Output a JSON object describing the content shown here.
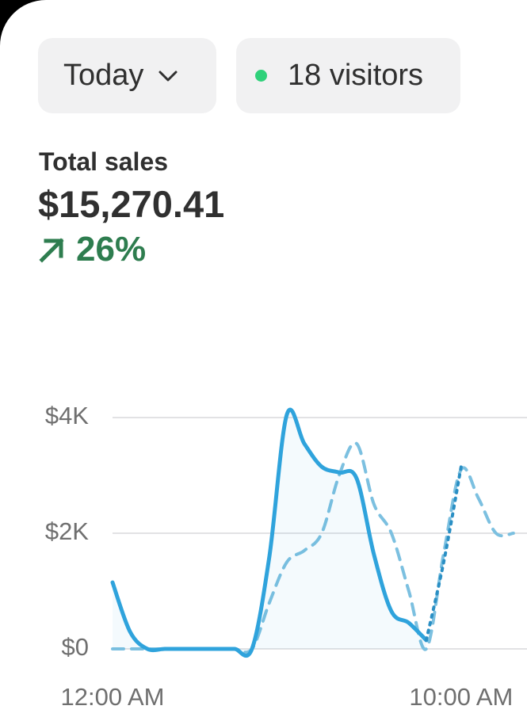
{
  "header": {
    "period_button": "Today",
    "visitors_button": "18 visitors"
  },
  "metric": {
    "label": "Total sales",
    "value": "$15,270.41",
    "change": "26%"
  },
  "chart_data": {
    "type": "line",
    "x": [
      0,
      0.5,
      1,
      1.5,
      2,
      2.5,
      3,
      3.5,
      4,
      4.5,
      5,
      5.5,
      6,
      6.5,
      7,
      7.5,
      8,
      8.5,
      9,
      9.5,
      10,
      10.5,
      11,
      11.5
    ],
    "series": [
      {
        "color": "#2fa3dc",
        "style": "solid",
        "values": [
          1150,
          300,
          0,
          0,
          0,
          0,
          0,
          0,
          0,
          1600,
          4050,
          3550,
          3150,
          3050,
          2950,
          1630,
          650,
          450,
          150,
          null,
          null,
          null,
          null,
          null
        ]
      },
      {
        "color": "#2a8fc4",
        "style": "dotted",
        "values": [
          null,
          null,
          null,
          null,
          null,
          null,
          null,
          null,
          null,
          null,
          null,
          null,
          null,
          null,
          null,
          null,
          null,
          null,
          150,
          1500,
          3150,
          null,
          null,
          null
        ]
      },
      {
        "color": "#7cc0e0",
        "style": "dashed",
        "values": [
          0,
          0,
          0,
          0,
          0,
          0,
          0,
          0,
          0,
          800,
          1500,
          1700,
          2000,
          3000,
          3550,
          2500,
          2000,
          1000,
          0,
          1650,
          3100,
          2600,
          2000,
          2000
        ]
      }
    ],
    "xlim": [
      0,
      11.89
    ],
    "ylim": [
      0,
      4000
    ],
    "xticks": [
      {
        "value": 0,
        "label": "12:00 AM"
      },
      {
        "value": 10,
        "label": "10:00 AM"
      }
    ],
    "yticks": [
      {
        "value": 0,
        "label": "$0"
      },
      {
        "value": 2000,
        "label": "$2K"
      },
      {
        "value": 4000,
        "label": "$4K"
      }
    ],
    "grid": true
  }
}
